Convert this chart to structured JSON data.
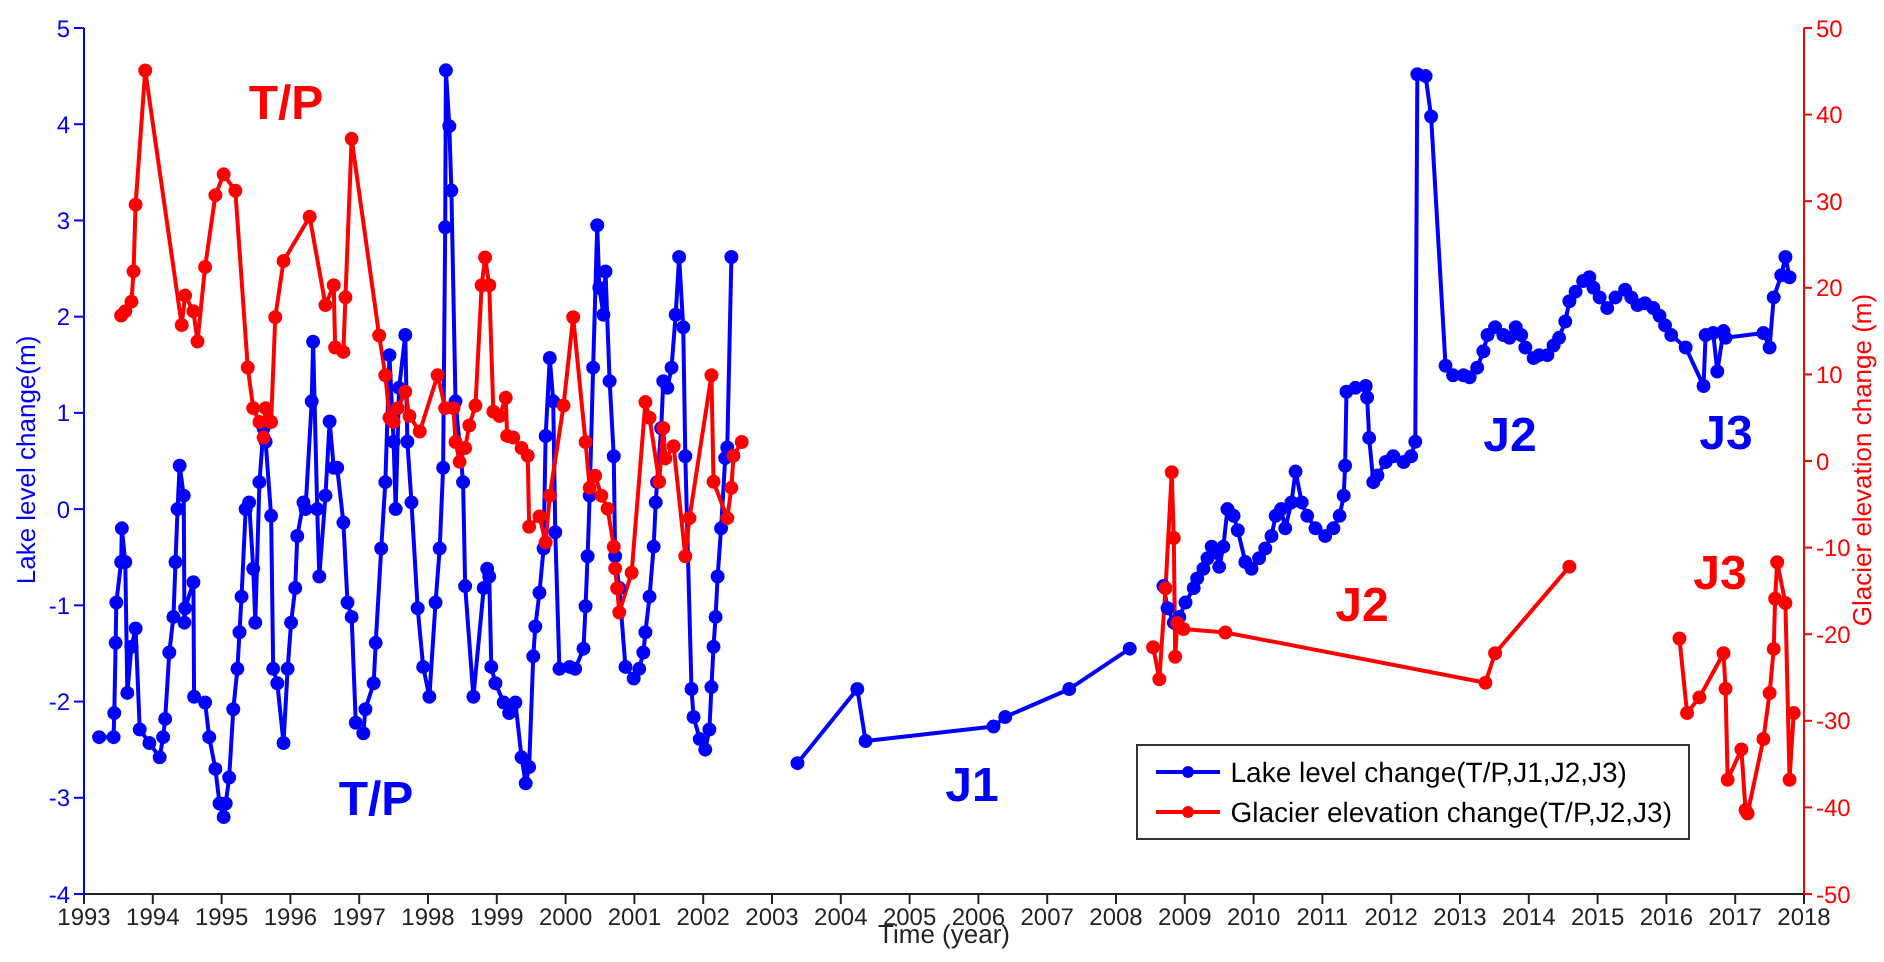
{
  "chart_data": {
    "type": "line",
    "xlabel": "Time (year)",
    "ylabel": "Lake level change(m)",
    "y2label": "Glacier elevation change (m)",
    "xlim": [
      1993,
      2018
    ],
    "xticks": [
      1993,
      1994,
      1995,
      1996,
      1997,
      1998,
      1999,
      2000,
      2001,
      2002,
      2003,
      2004,
      2005,
      2006,
      2007,
      2008,
      2009,
      2010,
      2011,
      2012,
      2013,
      2014,
      2015,
      2016,
      2017,
      2018
    ],
    "ylim": [
      -4,
      5
    ],
    "yticks": [
      -4,
      -3,
      -2,
      -1,
      0,
      1,
      2,
      3,
      4,
      5
    ],
    "y2lim": [
      -50,
      50
    ],
    "y2ticks": [
      -50,
      -40,
      -30,
      -20,
      -10,
      0,
      10,
      20,
      30,
      40,
      50
    ],
    "grid": false,
    "legend": "bottom right",
    "marker": "circle",
    "line_style": "solid",
    "annotations": [
      "T/P",
      "T/P",
      "J1",
      "J2",
      "J2",
      "J3",
      "J3"
    ],
    "series": [
      {
        "name": "Lake level change(T/P,J1,J2,J3)",
        "color": "#0000ff",
        "x": [
          1993.22,
          1993.43,
          1993.44,
          1993.46,
          1993.47,
          1993.54,
          1993.55,
          1993.6,
          1993.63,
          1993.69,
          1993.75,
          1993.81,
          1993.95,
          1994.1,
          1994.15,
          1994.18,
          1994.24,
          1994.3,
          1994.33,
          1994.36,
          1994.39,
          1994.45,
          1994.46,
          1994.47,
          1994.59,
          1994.6,
          1994.76,
          1994.82,
          1994.91,
          1994.97,
          1995.03,
          1995.06,
          1995.11,
          1995.17,
          1995.23,
          1995.26,
          1995.29,
          1995.35,
          1995.4,
          1995.46,
          1995.49,
          1995.55,
          1995.61,
          1995.64,
          1995.72,
          1995.75,
          1995.81,
          1995.9,
          1995.96,
          1996.01,
          1996.07,
          1996.1,
          1996.19,
          1996.22,
          1996.31,
          1996.33,
          1996.39,
          1996.42,
          1996.51,
          1996.57,
          1996.63,
          1996.68,
          1996.77,
          1996.83,
          1996.89,
          1996.95,
          1997.06,
          1997.09,
          1997.21,
          1997.24,
          1997.32,
          1997.38,
          1997.44,
          1997.5,
          1997.53,
          1997.58,
          1997.67,
          1997.7,
          1997.76,
          1997.85,
          1997.93,
          1998.02,
          1998.11,
          1998.17,
          1998.22,
          1998.25,
          1998.26,
          1998.31,
          1998.34,
          1998.4,
          1998.51,
          1998.54,
          1998.66,
          1998.81,
          1998.86,
          1998.89,
          1998.92,
          1998.98,
          1999.1,
          1999.18,
          1999.27,
          1999.36,
          1999.42,
          1999.47,
          1999.53,
          1999.56,
          1999.62,
          1999.68,
          1999.71,
          1999.77,
          1999.82,
          1999.85,
          1999.91,
          2000.06,
          2000.14,
          2000.26,
          2000.29,
          2000.32,
          2000.35,
          2000.4,
          2000.46,
          2000.49,
          2000.55,
          2000.58,
          2000.64,
          2000.7,
          2000.72,
          2000.78,
          2000.87,
          2000.99,
          2001.07,
          2001.13,
          2001.16,
          2001.22,
          2001.28,
          2001.31,
          2001.33,
          2001.39,
          2001.42,
          2001.48,
          2001.54,
          2001.6,
          2001.65,
          2001.71,
          2001.74,
          2001.83,
          2001.86,
          2001.95,
          2002.03,
          2002.09,
          2002.12,
          2002.15,
          2002.18,
          2002.21,
          2002.26,
          2002.32,
          2002.35,
          2002.41,
          2002.9,
          2003.37,
          2004.24,
          2004.36,
          2006.22,
          2006.39,
          2007.32,
          2008.2,
          2008.45,
          2008.69,
          2008.75,
          2008.84,
          2008.92,
          2009.01,
          2009.13,
          2009.18,
          2009.27,
          2009.33,
          2009.39,
          2009.45,
          2009.5,
          2009.56,
          2009.62,
          2009.71,
          2009.77,
          2009.88,
          2009.97,
          2010.08,
          2010.17,
          2010.26,
          2010.32,
          2010.4,
          2010.46,
          2010.55,
          2010.61,
          2010.7,
          2010.78,
          2010.9,
          2011.04,
          2011.16,
          2011.25,
          2011.31,
          2011.33,
          2011.35,
          2011.48,
          2011.63,
          2011.65,
          2011.68,
          2011.74,
          2011.8,
          2011.92,
          2012.03,
          2012.18,
          2012.29,
          2012.35,
          2012.38,
          2012.5,
          2012.58,
          2012.79,
          2012.9,
          2013.05,
          2013.14,
          2013.25,
          2013.34,
          2013.4,
          2013.51,
          2013.63,
          2013.72,
          2013.81,
          2013.89,
          2013.95,
          2014.07,
          2014.15,
          2014.27,
          2014.36,
          2014.44,
          2014.53,
          2014.59,
          2014.68,
          2014.79,
          2014.88,
          2014.94,
          2015.03,
          2015.14,
          2015.26,
          2015.4,
          2015.49,
          2015.58,
          2015.69,
          2015.81,
          2015.9,
          2015.98,
          2016.07,
          2016.28,
          2016.54,
          2016.57,
          2016.68,
          2016.74,
          2016.83,
          2016.86,
          2017.41,
          2017.5,
          2017.56,
          2017.67,
          2017.73,
          2017.79
        ],
        "values": [
          -2.37,
          -2.37,
          -2.12,
          -1.39,
          -0.97,
          -0.55,
          -0.2,
          -0.55,
          -1.91,
          -1.43,
          -1.24,
          -2.29,
          -2.43,
          -2.58,
          -2.37,
          -2.18,
          -1.49,
          -1.12,
          -0.55,
          0,
          0.45,
          0.14,
          -1.18,
          -1.03,
          -0.76,
          -1.95,
          -2.01,
          -2.37,
          -2.7,
          -3.06,
          -3.2,
          -3.06,
          -2.79,
          -2.08,
          -1.66,
          -1.28,
          -0.91,
          0,
          0.07,
          -0.62,
          -1.18,
          0.28,
          0.84,
          0.7,
          -0.07,
          -1.66,
          -1.81,
          -2.43,
          -1.66,
          -1.18,
          -0.82,
          -0.28,
          0.07,
          0,
          1.12,
          1.74,
          0,
          -0.7,
          0.14,
          0.91,
          0.43,
          0.43,
          -0.14,
          -0.97,
          -1.12,
          -2.22,
          -2.33,
          -2.08,
          -1.81,
          -1.39,
          -0.41,
          0.28,
          1.6,
          0.7,
          0,
          1.26,
          1.81,
          0.7,
          0.07,
          -1.03,
          -1.64,
          -1.95,
          -0.97,
          -0.41,
          0.43,
          2.93,
          4.56,
          3.98,
          3.31,
          1.12,
          0.28,
          -0.8,
          -1.95,
          -0.82,
          -0.62,
          -0.7,
          -1.64,
          -1.81,
          -2.01,
          -2.12,
          -2.01,
          -2.58,
          -2.85,
          -2.68,
          -1.53,
          -1.22,
          -0.87,
          -0.41,
          0.76,
          1.57,
          1.12,
          -0.24,
          -1.66,
          -1.64,
          -1.66,
          -1.45,
          -1.01,
          -0.49,
          0.14,
          1.47,
          2.95,
          2.3,
          2.02,
          2.47,
          1.33,
          0.55,
          -0.49,
          -0.82,
          -1.64,
          -1.76,
          -1.66,
          -1.49,
          -1.28,
          -0.91,
          -0.39,
          0.07,
          0.28,
          0.84,
          1.33,
          1.26,
          1.47,
          2.02,
          2.62,
          1.89,
          0.55,
          -1.87,
          -2.16,
          -2.39,
          -2.5,
          -2.29,
          -1.85,
          -1.43,
          -1.12,
          -0.7,
          -0.2,
          0.53,
          0.64,
          2.62,
          null,
          -2.64,
          -1.87,
          -2.41,
          -2.26,
          -2.16,
          -1.87,
          -1.45,
          null,
          -0.8,
          -1.03,
          -1.18,
          -1.12,
          -0.97,
          -0.82,
          -0.72,
          -0.62,
          -0.51,
          -0.39,
          -0.45,
          -0.6,
          -0.39,
          0,
          -0.07,
          -0.22,
          -0.55,
          -0.62,
          -0.51,
          -0.41,
          -0.28,
          -0.07,
          0,
          -0.2,
          0.07,
          0.39,
          0.07,
          -0.07,
          -0.2,
          -0.28,
          -0.2,
          -0.07,
          0.14,
          0.45,
          1.22,
          1.26,
          1.28,
          1.16,
          0.74,
          0.28,
          0.35,
          0.49,
          0.55,
          0.49,
          0.55,
          0.7,
          4.52,
          4.5,
          4.08,
          1.49,
          1.39,
          1.39,
          1.37,
          1.47,
          1.64,
          1.81,
          1.89,
          1.81,
          1.78,
          1.89,
          1.81,
          1.68,
          1.57,
          1.6,
          1.6,
          1.7,
          1.78,
          1.95,
          2.16,
          2.26,
          2.37,
          2.41,
          2.3,
          2.2,
          2.09,
          2.2,
          2.28,
          2.2,
          2.12,
          2.14,
          2.09,
          2.01,
          1.91,
          1.81,
          1.68,
          1.28,
          1.81,
          1.83,
          1.43,
          1.85,
          1.78,
          1.83,
          1.68,
          2.2,
          2.43,
          2.62,
          2.41
        ]
      },
      {
        "name": "Glacier elevation change(T/P,J2,J3)",
        "color": "#ff0000",
        "axis": "y2",
        "x": [
          1993.54,
          1993.6,
          1993.69,
          1993.72,
          1993.75,
          1993.89,
          1994.42,
          1994.47,
          1994.59,
          1994.65,
          1994.76,
          1994.91,
          1995.03,
          1995.2,
          1995.38,
          1995.46,
          1995.55,
          1995.61,
          1995.64,
          1995.72,
          1995.78,
          1995.9,
          1996.28,
          1996.51,
          1996.63,
          1996.65,
          1996.77,
          1996.8,
          1996.89,
          1997.29,
          1997.38,
          1997.44,
          1997.5,
          1997.56,
          1997.67,
          1997.73,
          1997.88,
          1998.14,
          1998.25,
          1998.37,
          1998.4,
          1998.46,
          1998.54,
          1998.6,
          1998.69,
          1998.78,
          1998.83,
          1998.89,
          1998.95,
          1999.04,
          1999.13,
          1999.15,
          1999.24,
          1999.36,
          1999.45,
          1999.47,
          1999.62,
          1999.71,
          1999.77,
          1999.97,
          2000.11,
          2000.29,
          2000.35,
          2000.43,
          2000.52,
          2000.61,
          2000.7,
          2000.72,
          2000.75,
          2000.78,
          2000.96,
          2001.16,
          2001.22,
          2001.36,
          2001.42,
          2001.45,
          2001.57,
          2001.74,
          2001.8,
          2002.12,
          2002.15,
          2002.35,
          2002.41,
          2002.44,
          2002.56,
          2005,
          2008.54,
          2008.63,
          2008.72,
          2008.81,
          2008.84,
          2008.86,
          2008.89,
          2008.98,
          2009.59,
          2013.37,
          2013.51,
          2014.59,
          2015.5,
          2016.19,
          2016.3,
          2016.48,
          2016.83,
          2016.86,
          2016.89,
          2017.09,
          2017.15,
          2017.18,
          2017.41,
          2017.5,
          2017.56,
          2017.58,
          2017.61,
          2017.73,
          2017.79,
          2017.85
        ],
        "values": [
          16.8,
          17.3,
          18.4,
          21.9,
          29.6,
          45.1,
          15.7,
          19.1,
          17.3,
          13.8,
          22.4,
          30.7,
          33.1,
          31.2,
          10.8,
          6.1,
          4.5,
          2.7,
          6.1,
          4.5,
          16.6,
          23.1,
          28.2,
          18,
          20.3,
          13.1,
          12.6,
          18.9,
          37.2,
          14.5,
          9.9,
          5,
          4.5,
          6.1,
          8,
          5.2,
          3.4,
          9.9,
          6.1,
          6.1,
          2.2,
          -0.1,
          1.5,
          4.1,
          6.4,
          20.3,
          23.5,
          20.3,
          5.7,
          5.2,
          7.3,
          2.9,
          2.7,
          1.5,
          0.6,
          -7.6,
          -6.4,
          -9.4,
          -4,
          6.4,
          16.6,
          2.2,
          -3.1,
          -1.7,
          -4,
          -5.5,
          -9.9,
          -12.4,
          -14.7,
          -17.5,
          -12.9,
          6.8,
          5,
          -2.4,
          3.8,
          0.3,
          1.7,
          -11,
          -6.6,
          9.9,
          -2.4,
          -6.6,
          -3.1,
          0.6,
          2.2,
          null,
          -21.5,
          -25.2,
          -14.7,
          -1.3,
          -8.9,
          -22.6,
          -18.7,
          -19.4,
          -19.8,
          -25.6,
          -22.2,
          -12.2,
          null,
          -20.5,
          -29.1,
          -27.3,
          -22.2,
          -26.3,
          -36.8,
          -33.3,
          -40.3,
          -40.7,
          -32.1,
          -26.8,
          -21.7,
          -15.9,
          -11.7,
          -16.4,
          -36.8,
          -29.1
        ]
      }
    ]
  }
}
